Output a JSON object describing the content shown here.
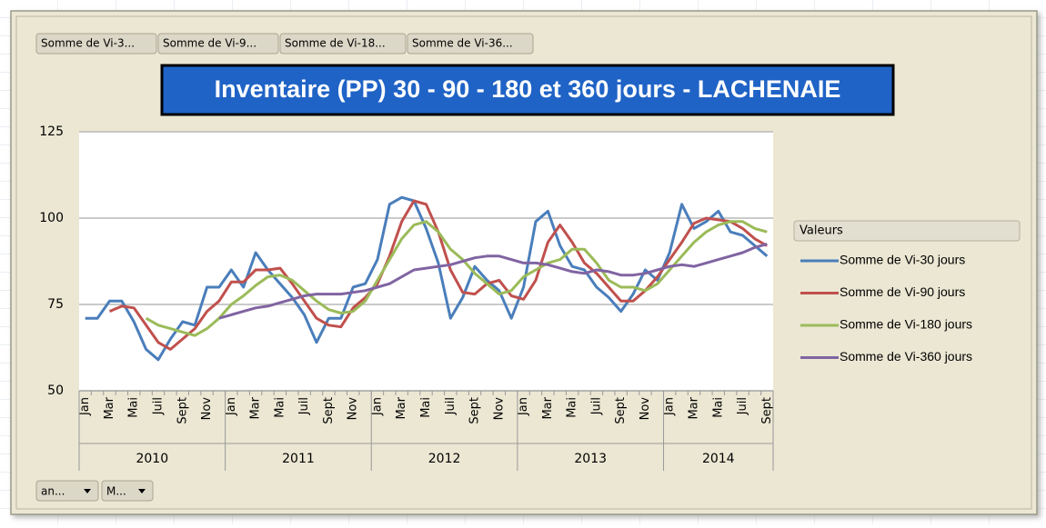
{
  "field_buttons": [
    "Somme de Vi-3...",
    "Somme de Vi-9...",
    "Somme de Vi-18...",
    "Somme de Vi-36..."
  ],
  "axis_buttons": [
    "an...",
    "M..."
  ],
  "chart_data": {
    "type": "line",
    "title": "Inventaire (PP) 30 - 90 - 180 et 360 jours - LACHENAIE",
    "legend_title": "Valeurs",
    "legend": "right",
    "grid": true,
    "ylim": [
      50,
      125
    ],
    "yticks": [
      50,
      75,
      100,
      125
    ],
    "years": [
      "2010",
      "2011",
      "2012",
      "2013",
      "2014"
    ],
    "categories": [
      "Jan",
      null,
      "Mar",
      null,
      "Mai",
      null,
      "Juil",
      null,
      "Sept",
      null,
      "Nov",
      null,
      "Jan",
      null,
      "Mar",
      null,
      "Mai",
      null,
      "Juil",
      null,
      "Sept",
      null,
      "Nov",
      null,
      "Jan",
      null,
      "Mar",
      null,
      "Mai",
      null,
      "Juil",
      null,
      "Sept",
      null,
      "Nov",
      null,
      "Jan",
      null,
      "Mar",
      null,
      "Mai",
      null,
      "Juil",
      null,
      "Sept",
      null,
      "Nov",
      null,
      "Jan",
      null,
      "Mar",
      null,
      "Mai",
      null,
      "Juil",
      null,
      "Sept"
    ],
    "series": [
      {
        "name": "Somme de Vi-30 jours",
        "color": "#4a7ebb",
        "values": [
          71,
          71,
          76,
          76,
          70,
          62,
          59,
          65,
          70,
          69,
          80,
          80,
          85,
          80,
          90,
          85,
          81,
          77,
          72,
          64,
          71,
          71,
          80,
          81,
          88,
          104,
          106,
          105,
          97,
          87,
          71,
          77,
          86,
          82,
          79,
          71,
          80,
          99,
          102,
          92,
          86,
          85,
          80,
          77,
          73,
          78,
          85,
          82,
          90,
          104,
          97,
          99,
          102,
          96,
          95,
          92,
          89
        ]
      },
      {
        "name": "Somme de Vi-90 jours",
        "color": "#c0504d",
        "values": [
          null,
          null,
          73,
          74.5,
          74,
          69,
          64,
          62,
          65,
          68,
          73,
          76,
          81.5,
          81.5,
          85,
          85,
          85.5,
          81,
          76,
          71,
          69,
          68.5,
          74,
          77,
          81,
          89,
          99,
          105,
          104,
          96,
          85,
          78.5,
          78,
          81,
          82,
          77.5,
          76.5,
          82,
          93,
          98,
          93,
          87,
          84,
          80,
          76,
          76,
          79,
          83,
          88,
          93,
          98.5,
          100,
          99.5,
          99,
          97,
          94,
          92
        ]
      },
      {
        "name": "Somme de Vi-180 jours",
        "color": "#9bbb59",
        "values": [
          null,
          null,
          null,
          null,
          null,
          71,
          69,
          68,
          67,
          66,
          68,
          71,
          75,
          77.5,
          80.5,
          83,
          83.5,
          82,
          79,
          76,
          73.5,
          72.5,
          73,
          76,
          82,
          88,
          94,
          98,
          99,
          96,
          91,
          88,
          84,
          81,
          78,
          79,
          83,
          85,
          87,
          88,
          91,
          91,
          87,
          82,
          80,
          80,
          79,
          81,
          85,
          89,
          93,
          96,
          98,
          99,
          99,
          97,
          96
        ]
      },
      {
        "name": "Somme de Vi-360 jours",
        "color": "#8064a2",
        "values": [
          null,
          null,
          null,
          null,
          null,
          null,
          null,
          null,
          null,
          null,
          null,
          71,
          72,
          73,
          74,
          74.5,
          75.5,
          76.5,
          77.5,
          78,
          78,
          78,
          78.5,
          79,
          80,
          81,
          83,
          85,
          85.5,
          86,
          86.5,
          87.5,
          88.5,
          89,
          89,
          88,
          87,
          87,
          86.5,
          85.5,
          84.5,
          84,
          85,
          84.5,
          83.5,
          83.5,
          84,
          85,
          86,
          86.5,
          86,
          87,
          88,
          89,
          90,
          91.5,
          92.5
        ]
      }
    ]
  }
}
